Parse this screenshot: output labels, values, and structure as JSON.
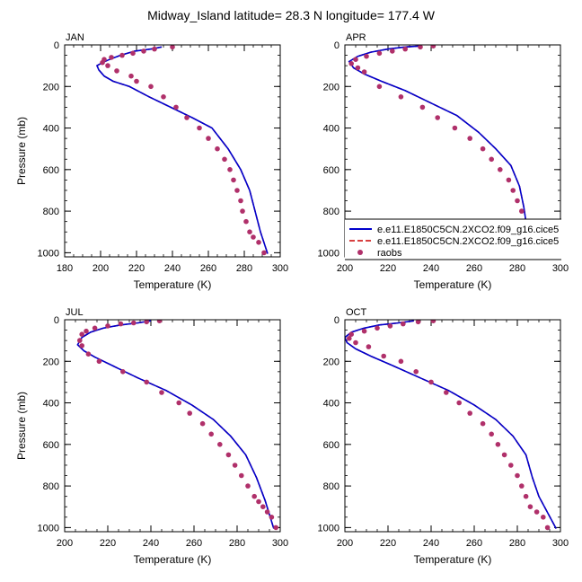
{
  "figure": {
    "title": "Midway_Island  latitude= 28.3 N longitude= 177.4 W"
  },
  "legend": {
    "entries": [
      {
        "label": "e.e11.E1850C5CN.2XCO2.f09_g16.cice5",
        "style": "solid",
        "color": "#0000cc"
      },
      {
        "label": "e.e11.E1850C5CN.2XCO2.f09_g16.cice5",
        "style": "dashed",
        "color": "#cc0000"
      },
      {
        "label": "raobs",
        "style": "marker",
        "color": "#b0306a"
      }
    ]
  },
  "colors": {
    "model_solid": "#0000cc",
    "model_dashed": "#cc0000",
    "obs_marker": "#b0306a"
  },
  "chart_data": [
    {
      "type": "line",
      "panel": "JAN",
      "title": "JAN",
      "xlabel": "Temperature (K)",
      "ylabel": "Pressure (mb)",
      "xlim": [
        180,
        300
      ],
      "ylim": [
        1020,
        0
      ],
      "xticks": [
        180,
        200,
        220,
        240,
        260,
        280,
        300
      ],
      "yticks": [
        0,
        200,
        400,
        600,
        800,
        1000
      ],
      "model_solid": {
        "x": [
          234,
          228,
          219,
          211,
          205,
          201,
          198,
          199,
          202,
          207,
          216,
          227,
          239,
          251,
          262,
          271,
          278,
          283,
          286,
          289,
          293
        ],
        "y": [
          10,
          20,
          30,
          50,
          70,
          85,
          100,
          120,
          150,
          175,
          200,
          250,
          300,
          350,
          400,
          500,
          600,
          700,
          800,
          900,
          1005
        ]
      },
      "model_dashed": {
        "x": [
          234,
          228,
          219,
          211,
          205,
          201,
          198,
          199,
          202,
          207,
          216,
          227,
          239,
          251,
          262,
          271,
          278,
          283,
          286,
          289,
          293
        ],
        "y": [
          10,
          20,
          30,
          50,
          70,
          85,
          100,
          120,
          150,
          175,
          200,
          250,
          300,
          350,
          400,
          500,
          600,
          700,
          800,
          900,
          1005
        ]
      },
      "raobs": {
        "x": [
          240,
          230,
          224,
          218,
          212,
          206,
          202,
          201,
          204,
          209,
          217,
          220,
          228,
          235,
          242,
          248,
          255,
          260,
          265,
          269,
          272,
          274,
          276,
          278,
          279,
          281,
          283,
          285,
          288,
          291
        ],
        "y": [
          10,
          20,
          30,
          40,
          50,
          60,
          70,
          85,
          100,
          125,
          150,
          175,
          200,
          250,
          300,
          350,
          400,
          450,
          500,
          550,
          600,
          650,
          700,
          750,
          800,
          850,
          900,
          925,
          950,
          1000
        ]
      }
    },
    {
      "type": "line",
      "panel": "APR",
      "title": "APR",
      "xlabel": "Temperature (K)",
      "ylabel": "",
      "xlim": [
        200,
        300
      ],
      "ylim": [
        1020,
        0
      ],
      "xticks": [
        200,
        220,
        240,
        260,
        280,
        300
      ],
      "yticks": [
        0,
        200,
        400,
        600,
        800,
        1000
      ],
      "model_solid": {
        "x": [
          235,
          228,
          220,
          212,
          206,
          202,
          204,
          209,
          217,
          228,
          240,
          252,
          262,
          270,
          277,
          281,
          283,
          284,
          287,
          292
        ],
        "y": [
          5,
          10,
          20,
          35,
          55,
          80,
          110,
          140,
          175,
          220,
          280,
          340,
          420,
          500,
          580,
          680,
          780,
          850,
          920,
          1005
        ]
      },
      "model_dashed": {
        "x": [
          235,
          228,
          220,
          212,
          206,
          202,
          204,
          209,
          217,
          228,
          240,
          252,
          262,
          270,
          277,
          281,
          283,
          284,
          287,
          292
        ],
        "y": [
          5,
          10,
          20,
          35,
          55,
          80,
          110,
          140,
          175,
          220,
          280,
          340,
          420,
          500,
          580,
          680,
          780,
          850,
          920,
          1005
        ]
      },
      "raobs": {
        "x": [
          241,
          235,
          228,
          222,
          216,
          210,
          205,
          203,
          206,
          209,
          216,
          226,
          236,
          243,
          251,
          258,
          264,
          268,
          272,
          276,
          278,
          280,
          282,
          283,
          284,
          285,
          287,
          290,
          292
        ],
        "y": [
          5,
          10,
          20,
          30,
          40,
          55,
          70,
          90,
          110,
          130,
          200,
          250,
          300,
          350,
          400,
          450,
          500,
          550,
          600,
          650,
          700,
          750,
          800,
          850,
          875,
          900,
          925,
          950,
          1000
        ]
      }
    },
    {
      "type": "line",
      "panel": "JUL",
      "title": "JUL",
      "xlabel": "Temperature (K)",
      "ylabel": "Pressure (mb)",
      "xlim": [
        200,
        300
      ],
      "ylim": [
        1020,
        0
      ],
      "xticks": [
        200,
        220,
        240,
        260,
        280,
        300
      ],
      "yticks": [
        0,
        200,
        400,
        600,
        800,
        1000
      ],
      "model_solid": {
        "x": [
          240,
          234,
          226,
          218,
          212,
          208,
          206,
          209,
          214,
          222,
          234,
          247,
          259,
          269,
          277,
          284,
          289,
          293,
          297
        ],
        "y": [
          5,
          15,
          25,
          40,
          60,
          85,
          120,
          150,
          180,
          220,
          280,
          340,
          410,
          480,
          560,
          650,
          760,
          870,
          1005
        ]
      },
      "model_dashed": {
        "x": [
          240,
          234,
          226,
          218,
          212,
          208,
          206,
          209,
          214,
          222,
          234,
          247,
          259,
          269,
          277,
          284,
          289,
          293,
          297
        ],
        "y": [
          5,
          15,
          25,
          40,
          60,
          85,
          120,
          150,
          180,
          220,
          280,
          340,
          410,
          480,
          560,
          650,
          760,
          870,
          1005
        ]
      },
      "raobs": {
        "x": [
          244,
          238,
          232,
          226,
          220,
          214,
          210,
          208,
          207,
          208,
          211,
          216,
          227,
          238,
          245,
          253,
          258,
          264,
          268,
          272,
          276,
          279,
          282,
          285,
          288,
          290,
          292,
          294,
          296,
          298
        ],
        "y": [
          5,
          10,
          15,
          20,
          30,
          40,
          55,
          70,
          100,
          125,
          165,
          200,
          250,
          300,
          350,
          400,
          450,
          500,
          550,
          600,
          650,
          700,
          750,
          800,
          850,
          875,
          900,
          925,
          950,
          1000
        ]
      }
    },
    {
      "type": "line",
      "panel": "OCT",
      "title": "OCT",
      "xlabel": "Temperature (K)",
      "ylabel": "",
      "xlim": [
        200,
        300
      ],
      "ylim": [
        1020,
        0
      ],
      "xticks": [
        200,
        220,
        240,
        260,
        280,
        300
      ],
      "yticks": [
        0,
        200,
        400,
        600,
        800,
        1000
      ],
      "model_solid": {
        "x": [
          232,
          225,
          216,
          209,
          203,
          200,
          201,
          205,
          212,
          222,
          235,
          248,
          260,
          270,
          278,
          284,
          287,
          290,
          298
        ],
        "y": [
          5,
          15,
          25,
          40,
          60,
          85,
          110,
          140,
          175,
          220,
          280,
          340,
          410,
          480,
          560,
          650,
          760,
          850,
          1005
        ]
      },
      "model_dashed": {
        "x": [
          232,
          225,
          216,
          209,
          203,
          200,
          201,
          205,
          212,
          222,
          235,
          248,
          260,
          270,
          278,
          284,
          287,
          290,
          298
        ],
        "y": [
          5,
          15,
          25,
          40,
          60,
          85,
          110,
          140,
          175,
          220,
          280,
          340,
          410,
          480,
          560,
          650,
          760,
          850,
          1005
        ]
      },
      "raobs": {
        "x": [
          241,
          234,
          227,
          221,
          215,
          209,
          203,
          202,
          205,
          211,
          218,
          226,
          233,
          240,
          247,
          253,
          258,
          264,
          268,
          271,
          274,
          277,
          280,
          282,
          284,
          286,
          289,
          292,
          294
        ],
        "y": [
          5,
          10,
          20,
          30,
          40,
          55,
          70,
          90,
          110,
          130,
          175,
          200,
          250,
          300,
          350,
          400,
          450,
          500,
          550,
          600,
          650,
          700,
          750,
          800,
          850,
          900,
          925,
          950,
          1000
        ]
      }
    }
  ]
}
